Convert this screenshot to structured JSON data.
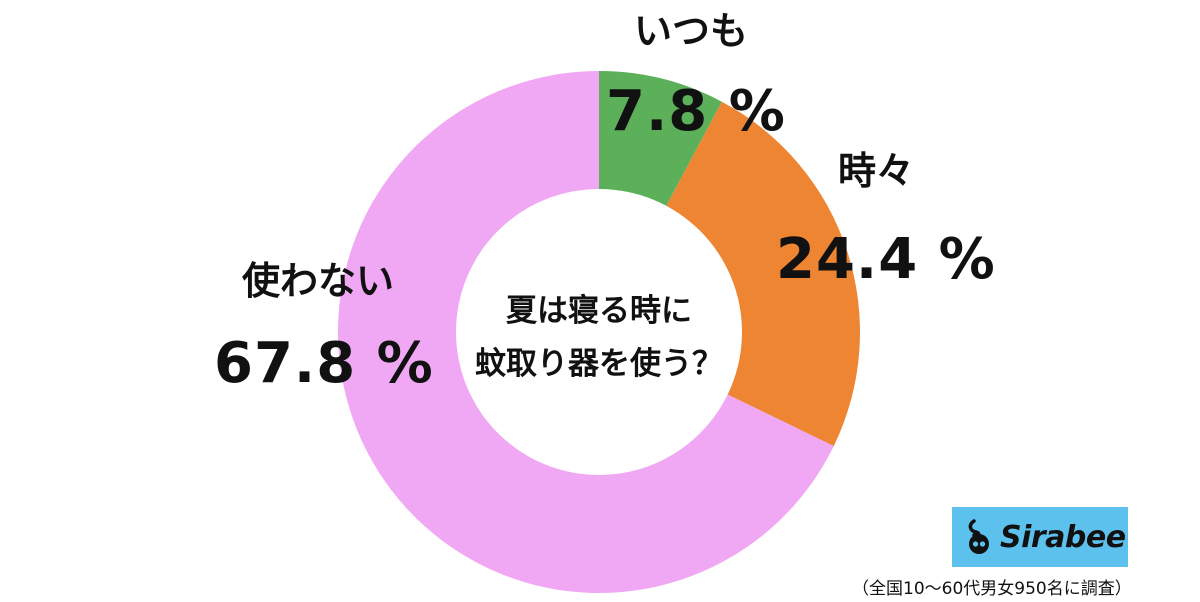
{
  "chart_data": {
    "type": "pie",
    "categories": [
      "いつも",
      "時々",
      "使わない"
    ],
    "values": [
      7.8,
      24.4,
      67.8
    ],
    "value_labels": [
      "7.8 %",
      "24.4 %",
      "67.8 %"
    ],
    "colors": [
      "#5db05a",
      "#ed8533",
      "#f0a8f4"
    ],
    "center_text": [
      "夏は寝る時に",
      "蚊取り器を使う？"
    ],
    "start_angle": "top",
    "direction": "clockwise"
  },
  "logo": {
    "text": "Sirabee",
    "background": "#5dc1ee"
  },
  "footnote": "（全国10〜60代男女950名に調査）"
}
